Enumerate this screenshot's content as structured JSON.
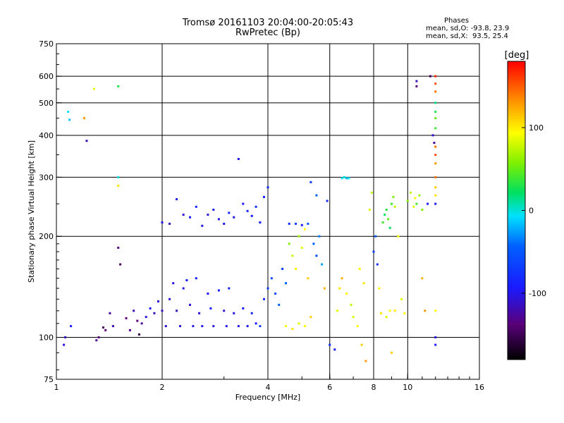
{
  "chart_data": {
    "type": "scatter",
    "title": "Tromsø 20161103 20:04:00-20:05:43",
    "subtitle": "RwPretec (Bp)",
    "xlabel": "Frequency [MHz]",
    "ylabel": "Stationary phase Virtual Height [km]",
    "xscale": "log",
    "yscale": "log",
    "xlim": [
      1,
      16
    ],
    "ylim": [
      75,
      750
    ],
    "x_ticks": [
      1,
      2,
      4,
      6,
      8,
      10,
      16
    ],
    "y_ticks": [
      75,
      100,
      200,
      300,
      400,
      500,
      600,
      750
    ],
    "grid": true,
    "phase_stats": {
      "heading": "Phases",
      "line_o": "mean, sd,O: -93.8, 23.9",
      "line_x": "mean, sd,X:  93.5, 25.4"
    },
    "colorbar": {
      "label": "[deg]",
      "ticks": [
        100,
        0,
        -100
      ],
      "range": [
        -180,
        180
      ]
    },
    "series": [
      {
        "points": [
          [
            1.05,
            95,
            -110
          ],
          [
            1.06,
            100,
            -120
          ],
          [
            1.1,
            108,
            -100
          ],
          [
            1.08,
            470,
            -20
          ],
          [
            1.09,
            445,
            -30
          ],
          [
            1.2,
            450,
            140
          ],
          [
            1.22,
            385,
            -120
          ],
          [
            1.28,
            550,
            90
          ],
          [
            1.3,
            98,
            -130
          ],
          [
            1.32,
            100,
            -140
          ],
          [
            1.36,
            107,
            -150
          ],
          [
            1.38,
            105,
            -140
          ],
          [
            1.42,
            118,
            -130
          ],
          [
            1.45,
            108,
            -120
          ],
          [
            1.5,
            300,
            -10
          ],
          [
            1.5,
            283,
            110
          ],
          [
            1.5,
            560,
            30
          ],
          [
            1.5,
            185,
            -140
          ],
          [
            1.52,
            165,
            -150
          ],
          [
            1.58,
            114,
            -140
          ],
          [
            1.62,
            105,
            -135
          ],
          [
            1.66,
            120,
            -120
          ],
          [
            1.7,
            112,
            -140
          ],
          [
            1.72,
            102,
            -160
          ],
          [
            1.75,
            110,
            -130
          ],
          [
            1.8,
            115,
            -110
          ],
          [
            1.85,
            122,
            -100
          ],
          [
            1.9,
            118,
            -120
          ],
          [
            1.95,
            128,
            -110
          ],
          [
            2.0,
            120,
            -120
          ],
          [
            2.05,
            108,
            -115
          ],
          [
            2.1,
            130,
            -110
          ],
          [
            2.15,
            145,
            -110
          ],
          [
            2.2,
            120,
            -120
          ],
          [
            2.25,
            108,
            -110
          ],
          [
            2.3,
            140,
            -105
          ],
          [
            2.35,
            148,
            -100
          ],
          [
            2.4,
            125,
            -110
          ],
          [
            2.45,
            108,
            -110
          ],
          [
            2.5,
            150,
            -100
          ],
          [
            2.55,
            118,
            -110
          ],
          [
            2.6,
            108,
            -105
          ],
          [
            2.7,
            135,
            -100
          ],
          [
            2.75,
            122,
            -95
          ],
          [
            2.8,
            108,
            -110
          ],
          [
            2.9,
            138,
            -100
          ],
          [
            3.0,
            120,
            -110
          ],
          [
            3.05,
            108,
            -105
          ],
          [
            3.1,
            140,
            -95
          ],
          [
            3.2,
            118,
            -110
          ],
          [
            3.3,
            108,
            -110
          ],
          [
            3.4,
            122,
            -100
          ],
          [
            3.5,
            108,
            -105
          ],
          [
            3.6,
            118,
            -95
          ],
          [
            3.7,
            110,
            -100
          ],
          [
            3.8,
            108,
            -80
          ],
          [
            2.0,
            220,
            -110
          ],
          [
            2.1,
            218,
            -120
          ],
          [
            2.2,
            258,
            -105
          ],
          [
            2.3,
            232,
            -110
          ],
          [
            2.4,
            228,
            -100
          ],
          [
            2.5,
            245,
            -95
          ],
          [
            2.6,
            215,
            -105
          ],
          [
            2.7,
            232,
            -110
          ],
          [
            2.8,
            240,
            -100
          ],
          [
            2.9,
            225,
            -110
          ],
          [
            3.0,
            218,
            -100
          ],
          [
            3.1,
            235,
            -95
          ],
          [
            3.2,
            228,
            -110
          ],
          [
            3.3,
            340,
            -110
          ],
          [
            3.4,
            250,
            -100
          ],
          [
            3.5,
            238,
            -95
          ],
          [
            3.6,
            230,
            -100
          ],
          [
            3.7,
            245,
            -90
          ],
          [
            3.8,
            220,
            -100
          ],
          [
            3.9,
            262,
            -95
          ],
          [
            4.0,
            280,
            -90
          ],
          [
            3.9,
            130,
            -90
          ],
          [
            4.0,
            140,
            -80
          ],
          [
            4.1,
            150,
            -75
          ],
          [
            4.2,
            135,
            -70
          ],
          [
            4.3,
            125,
            -60
          ],
          [
            4.4,
            160,
            -80
          ],
          [
            4.5,
            145,
            -60
          ],
          [
            4.6,
            190,
            60
          ],
          [
            4.7,
            175,
            80
          ],
          [
            4.8,
            160,
            100
          ],
          [
            4.9,
            200,
            70
          ],
          [
            5.0,
            185,
            90
          ],
          [
            5.1,
            210,
            100
          ],
          [
            5.2,
            150,
            120
          ],
          [
            4.5,
            108,
            100
          ],
          [
            4.7,
            106,
            110
          ],
          [
            4.9,
            110,
            90
          ],
          [
            5.1,
            108,
            100
          ],
          [
            5.3,
            115,
            120
          ],
          [
            4.6,
            218,
            -90
          ],
          [
            4.8,
            218,
            -80
          ],
          [
            5.0,
            216,
            -100
          ],
          [
            5.2,
            218,
            -70
          ],
          [
            5.4,
            190,
            -60
          ],
          [
            5.5,
            175,
            -70
          ],
          [
            5.6,
            200,
            -50
          ],
          [
            5.7,
            165,
            -40
          ],
          [
            5.8,
            140,
            130
          ],
          [
            5.3,
            290,
            -80
          ],
          [
            5.5,
            265,
            -60
          ],
          [
            5.9,
            255,
            -90
          ],
          [
            6.0,
            95,
            -90
          ],
          [
            6.2,
            92,
            -100
          ],
          [
            6.3,
            120,
            90
          ],
          [
            6.4,
            140,
            110
          ],
          [
            6.5,
            298,
            -20
          ],
          [
            6.6,
            300,
            -10
          ],
          [
            6.7,
            298,
            -30
          ],
          [
            6.8,
            298,
            -20
          ],
          [
            6.5,
            150,
            130
          ],
          [
            6.7,
            135,
            100
          ],
          [
            6.9,
            125,
            80
          ],
          [
            7.0,
            115,
            90
          ],
          [
            7.2,
            108,
            100
          ],
          [
            7.4,
            95,
            120
          ],
          [
            7.6,
            85,
            140
          ],
          [
            7.3,
            160,
            100
          ],
          [
            7.5,
            145,
            110
          ],
          [
            7.8,
            240,
            90
          ],
          [
            7.9,
            270,
            80
          ],
          [
            8.0,
            180,
            -80
          ],
          [
            8.1,
            200,
            -70
          ],
          [
            8.2,
            165,
            -90
          ],
          [
            8.3,
            140,
            100
          ],
          [
            8.4,
            118,
            110
          ],
          [
            8.5,
            220,
            40
          ],
          [
            8.6,
            232,
            20
          ],
          [
            8.7,
            240,
            30
          ],
          [
            8.8,
            225,
            50
          ],
          [
            8.9,
            212,
            20
          ],
          [
            9.0,
            250,
            40
          ],
          [
            9.1,
            262,
            60
          ],
          [
            9.2,
            245,
            80
          ],
          [
            8.7,
            115,
            90
          ],
          [
            8.9,
            120,
            100
          ],
          [
            9.0,
            90,
            120
          ],
          [
            9.2,
            120,
            110
          ],
          [
            9.4,
            200,
            100
          ],
          [
            9.6,
            130,
            90
          ],
          [
            9.8,
            118,
            100
          ],
          [
            10.0,
            255,
            60
          ],
          [
            10.2,
            270,
            80
          ],
          [
            10.4,
            245,
            90
          ],
          [
            10.5,
            260,
            100
          ],
          [
            10.6,
            250,
            40
          ],
          [
            10.8,
            265,
            70
          ],
          [
            11.0,
            240,
            60
          ],
          [
            10.6,
            580,
            -120
          ],
          [
            10.6,
            560,
            -140
          ],
          [
            11.0,
            150,
            130
          ],
          [
            11.2,
            120,
            140
          ],
          [
            11.4,
            250,
            -100
          ],
          [
            11.6,
            600,
            -150
          ],
          [
            12.0,
            600,
            170
          ],
          [
            12.0,
            570,
            160
          ],
          [
            12.0,
            540,
            150
          ],
          [
            12.0,
            500,
            10
          ],
          [
            12.0,
            470,
            30
          ],
          [
            12.0,
            450,
            50
          ],
          [
            12.0,
            420,
            40
          ],
          [
            12.0,
            370,
            150
          ],
          [
            12.0,
            350,
            160
          ],
          [
            12.0,
            330,
            140
          ],
          [
            12.0,
            300,
            150
          ],
          [
            12.0,
            280,
            120
          ],
          [
            12.0,
            265,
            110
          ],
          [
            12.0,
            250,
            -100
          ],
          [
            12.0,
            120,
            100
          ],
          [
            12.0,
            100,
            -110
          ],
          [
            12.0,
            95,
            -100
          ],
          [
            11.8,
            400,
            -110
          ],
          [
            11.9,
            380,
            -130
          ]
        ]
      }
    ]
  }
}
